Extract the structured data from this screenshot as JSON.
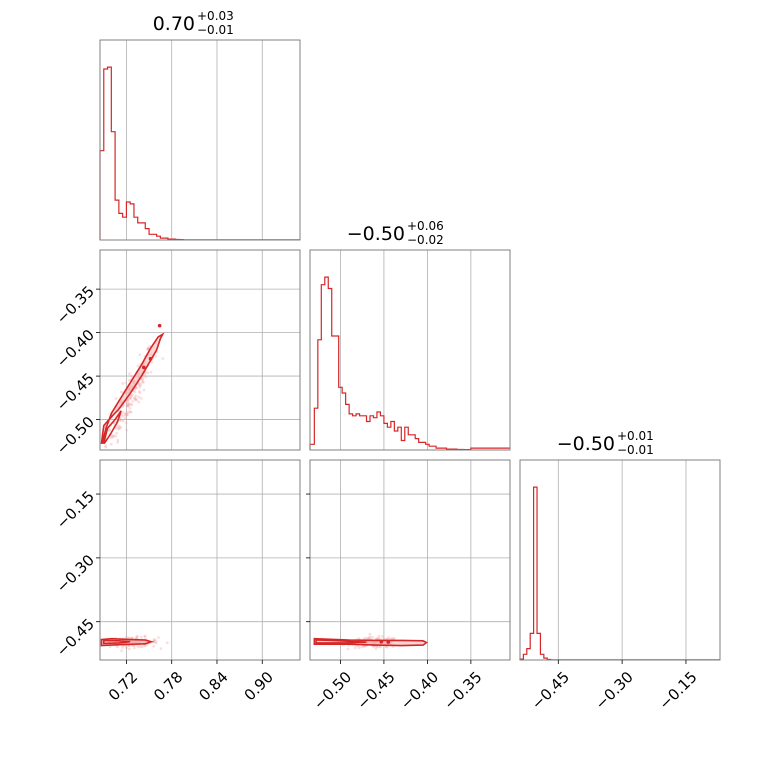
{
  "chart_data": {
    "type": "corner",
    "color": "#d62728",
    "parameters": [
      {
        "title": {
          "median": "0.70",
          "plus": "+0.03",
          "minus": "−0.01"
        },
        "range": [
          0.685,
          0.95
        ],
        "ticks": [
          {
            "v": 0.72,
            "label": "0.72"
          },
          {
            "v": 0.78,
            "label": "0.78"
          },
          {
            "v": 0.84,
            "label": "0.84"
          },
          {
            "v": 0.9,
            "label": "0.90"
          }
        ],
        "hist_edges": [
          0.685,
          0.69,
          0.695,
          0.7,
          0.705,
          0.71,
          0.715,
          0.72,
          0.725,
          0.73,
          0.735,
          0.74,
          0.745,
          0.75,
          0.755,
          0.76,
          0.765,
          0.77,
          0.775,
          0.78,
          0.785,
          0.79,
          0.795,
          0.8,
          0.95
        ],
        "hist_counts": [
          0.47,
          0.9,
          0.91,
          0.57,
          0.21,
          0.14,
          0.12,
          0.2,
          0.19,
          0.12,
          0.09,
          0.09,
          0.06,
          0.03,
          0.03,
          0.02,
          0.01,
          0.01,
          0.005,
          0.005,
          0.003,
          0.002,
          0.001,
          0.0005
        ]
      },
      {
        "title": {
          "median": "−0.50",
          "plus": "+0.06",
          "minus": "−0.02"
        },
        "range": [
          -0.535,
          -0.305
        ],
        "ticks": [
          {
            "v": -0.5,
            "label": "−0.50"
          },
          {
            "v": -0.45,
            "label": "−0.45"
          },
          {
            "v": -0.4,
            "label": "−0.40"
          },
          {
            "v": -0.35,
            "label": "−0.35"
          }
        ],
        "ytick_labels_2d": [
          {
            "v": -0.35,
            "label": "−0.35"
          },
          {
            "v": -0.4,
            "label": "−0.40"
          },
          {
            "v": -0.45,
            "label": "−0.45"
          },
          {
            "v": -0.5,
            "label": "−0.50"
          }
        ],
        "hist_edges": [
          -0.535,
          -0.53,
          -0.526,
          -0.522,
          -0.518,
          -0.514,
          -0.51,
          -0.506,
          -0.502,
          -0.498,
          -0.494,
          -0.49,
          -0.486,
          -0.482,
          -0.478,
          -0.474,
          -0.47,
          -0.466,
          -0.462,
          -0.458,
          -0.454,
          -0.45,
          -0.446,
          -0.442,
          -0.438,
          -0.434,
          -0.43,
          -0.426,
          -0.422,
          -0.418,
          -0.414,
          -0.41,
          -0.406,
          -0.402,
          -0.398,
          -0.394,
          -0.39,
          -0.386,
          -0.382,
          -0.378,
          -0.374,
          -0.37,
          -0.366,
          -0.362,
          -0.358,
          -0.354,
          -0.35,
          -0.305
        ],
        "hist_counts": [
          0.03,
          0.22,
          0.58,
          0.87,
          0.91,
          0.85,
          0.6,
          0.6,
          0.33,
          0.3,
          0.24,
          0.19,
          0.18,
          0.19,
          0.18,
          0.18,
          0.15,
          0.18,
          0.17,
          0.2,
          0.18,
          0.14,
          0.12,
          0.15,
          0.1,
          0.12,
          0.05,
          0.12,
          0.08,
          0.08,
          0.06,
          0.04,
          0.04,
          0.03,
          0.02,
          0.02,
          0.01,
          0.01,
          0.01,
          0.005,
          0.005,
          0.005,
          0.003,
          0.003,
          0.002,
          0.002,
          0.01
        ]
      },
      {
        "title": {
          "median": "−0.50",
          "plus": "+0.01",
          "minus": "−0.01"
        },
        "range": [
          -0.54,
          -0.07
        ],
        "ticks": [
          {
            "v": -0.45,
            "label": "−0.45"
          },
          {
            "v": -0.3,
            "label": "−0.30"
          },
          {
            "v": -0.15,
            "label": "−0.15"
          }
        ],
        "ytick_labels_2d": [
          {
            "v": -0.15,
            "label": "−0.15"
          },
          {
            "v": -0.3,
            "label": "−0.30"
          },
          {
            "v": -0.45,
            "label": "−0.45"
          }
        ],
        "hist_edges": [
          -0.54,
          -0.532,
          -0.524,
          -0.516,
          -0.508,
          -0.5,
          -0.492,
          -0.484,
          -0.476,
          -0.468,
          -0.07
        ],
        "hist_counts": [
          0.005,
          0.03,
          0.06,
          0.14,
          0.91,
          0.14,
          0.03,
          0.01,
          0.003,
          0.001
        ]
      }
    ],
    "panels_2d": [
      {
        "xparam": 0,
        "yparam": 1,
        "contour_outer": [
          [
            0.687,
            -0.527
          ],
          [
            0.69,
            -0.507
          ],
          [
            0.7,
            -0.497
          ],
          [
            0.71,
            -0.488
          ],
          [
            0.725,
            -0.47
          ],
          [
            0.74,
            -0.45
          ],
          [
            0.75,
            -0.435
          ],
          [
            0.76,
            -0.42
          ],
          [
            0.765,
            -0.407
          ],
          [
            0.768,
            -0.402
          ],
          [
            0.762,
            -0.405
          ],
          [
            0.752,
            -0.418
          ],
          [
            0.74,
            -0.437
          ],
          [
            0.727,
            -0.455
          ],
          [
            0.712,
            -0.476
          ],
          [
            0.7,
            -0.493
          ],
          [
            0.693,
            -0.51
          ],
          [
            0.688,
            -0.527
          ]
        ],
        "contour_inner": [
          [
            0.69,
            -0.527
          ],
          [
            0.695,
            -0.51
          ],
          [
            0.705,
            -0.5
          ],
          [
            0.713,
            -0.49
          ],
          [
            0.708,
            -0.503
          ],
          [
            0.698,
            -0.518
          ],
          [
            0.691,
            -0.527
          ]
        ],
        "islands": [
          [
            0.764,
            -0.392
          ],
          [
            0.743,
            -0.44
          ],
          [
            0.752,
            -0.43
          ]
        ],
        "scatter_stats": {
          "n": 220,
          "x_center": 0.725,
          "y_center": -0.473,
          "slope": 1.55,
          "spread": 0.012
        }
      },
      {
        "xparam": 0,
        "yparam": 2,
        "contour_outer": [
          [
            0.687,
            -0.492
          ],
          [
            0.7,
            -0.49
          ],
          [
            0.725,
            -0.492
          ],
          [
            0.745,
            -0.493
          ],
          [
            0.753,
            -0.497
          ],
          [
            0.745,
            -0.502
          ],
          [
            0.725,
            -0.503
          ],
          [
            0.7,
            -0.505
          ],
          [
            0.687,
            -0.506
          ]
        ],
        "contour_inner": [
          [
            0.69,
            -0.494
          ],
          [
            0.71,
            -0.495
          ],
          [
            0.725,
            -0.497
          ],
          [
            0.71,
            -0.5
          ],
          [
            0.69,
            -0.501
          ]
        ],
        "islands": [],
        "scatter_stats": {
          "n": 140,
          "x_center": 0.73,
          "y_center": -0.498,
          "slope": 0.0,
          "spread": 0.006
        }
      },
      {
        "xparam": 1,
        "yparam": 2,
        "contour_outer": [
          [
            -0.53,
            -0.49
          ],
          [
            -0.515,
            -0.491
          ],
          [
            -0.49,
            -0.493
          ],
          [
            -0.46,
            -0.494
          ],
          [
            -0.43,
            -0.494
          ],
          [
            -0.405,
            -0.495
          ],
          [
            -0.401,
            -0.499
          ],
          [
            -0.405,
            -0.505
          ],
          [
            -0.43,
            -0.506
          ],
          [
            -0.46,
            -0.505
          ],
          [
            -0.49,
            -0.503
          ],
          [
            -0.515,
            -0.503
          ],
          [
            -0.53,
            -0.503
          ]
        ],
        "contour_inner": [
          [
            -0.528,
            -0.493
          ],
          [
            -0.51,
            -0.494
          ],
          [
            -0.49,
            -0.496
          ],
          [
            -0.47,
            -0.498
          ],
          [
            -0.49,
            -0.5
          ],
          [
            -0.51,
            -0.5
          ],
          [
            -0.528,
            -0.5
          ]
        ],
        "islands": [
          [
            -0.453,
            -0.497
          ],
          [
            -0.445,
            -0.498
          ]
        ],
        "scatter_stats": {
          "n": 160,
          "x_center": -0.46,
          "y_center": -0.499,
          "slope": 0.0,
          "spread": 0.006
        }
      }
    ]
  }
}
